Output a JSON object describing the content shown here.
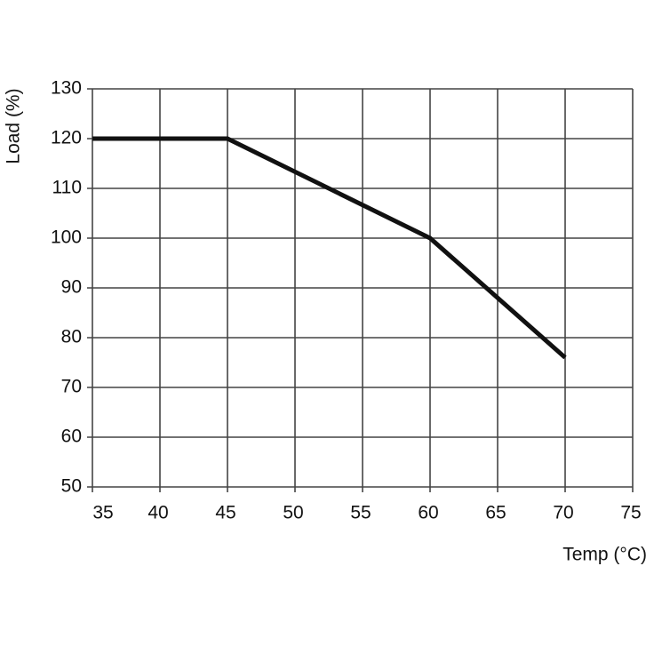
{
  "chart_data": {
    "type": "line",
    "x_label": "Temp (°C)",
    "y_label": "Load (%)",
    "xlim": [
      35,
      75
    ],
    "xticks": [
      35,
      40,
      45,
      50,
      55,
      60,
      65,
      70,
      75
    ],
    "ylim": [
      50,
      130
    ],
    "yticks": [
      50,
      60,
      70,
      80,
      90,
      100,
      110,
      120,
      130
    ],
    "grid": true,
    "series": [
      {
        "color": "#111111",
        "x": [
          35,
          45,
          60,
          70
        ],
        "values": [
          120,
          120,
          100,
          76
        ]
      }
    ]
  }
}
